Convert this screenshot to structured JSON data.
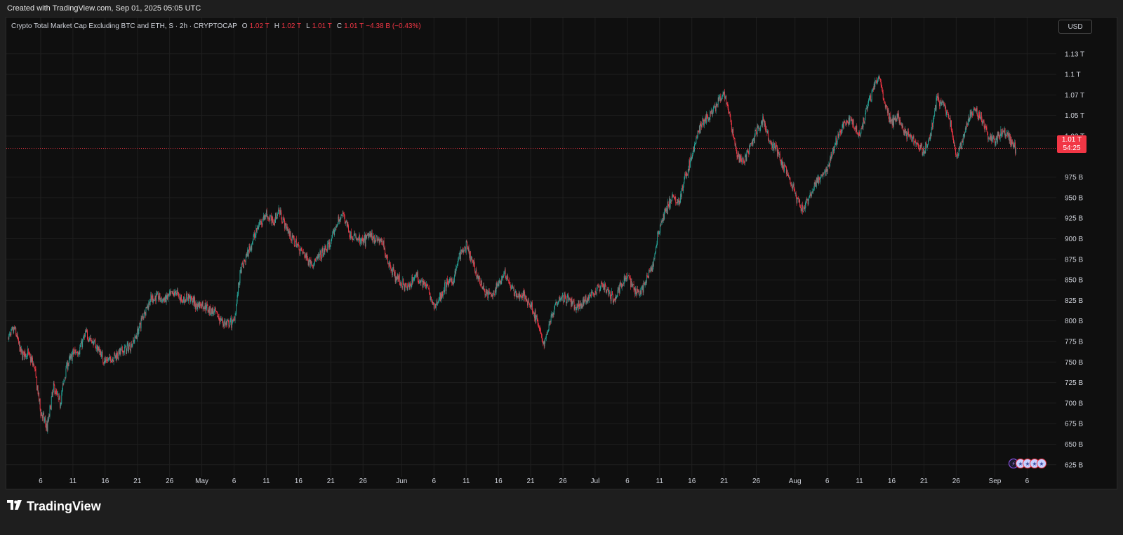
{
  "header": {
    "created_text": "Created with TradingView.com, Sep 01, 2025 05:05 UTC"
  },
  "legend": {
    "symbol": "Crypto Total Market Cap Excluding BTC and ETH, S · 2h · CRYPTOCAP",
    "o_label": "O",
    "o_value": "1.02 T",
    "h_label": "H",
    "h_value": "1.02 T",
    "l_label": "L",
    "l_value": "1.01 T",
    "c_label": "C",
    "c_value": "1.01 T",
    "change": "−4.38 B (−0.43%)"
  },
  "currency": "USD",
  "last_price": {
    "value_label": "1.01 T",
    "countdown": "54:25",
    "value": 1010
  },
  "branding": {
    "name": "TradingView"
  },
  "colors": {
    "up": "#26a69a",
    "down": "#f23645",
    "background": "#0f0f0f",
    "grid": "#1f1f1f",
    "text": "#d1d4dc",
    "last_price_line": "#f23645"
  },
  "events": {
    "icons": [
      "lightning-icon",
      "us-flag-icon",
      "us-flag-icon",
      "us-flag-icon",
      "us-flag-icon"
    ]
  },
  "chart_data": {
    "type": "candlestick",
    "interval": "2h",
    "y_unit": "USD (billions)",
    "ylim": [
      612,
      1147
    ],
    "y_ticks": [
      {
        "v": 625,
        "label": "625 B"
      },
      {
        "v": 650,
        "label": "650 B"
      },
      {
        "v": 675,
        "label": "675 B"
      },
      {
        "v": 700,
        "label": "700 B"
      },
      {
        "v": 725,
        "label": "725 B"
      },
      {
        "v": 750,
        "label": "750 B"
      },
      {
        "v": 775,
        "label": "775 B"
      },
      {
        "v": 800,
        "label": "800 B"
      },
      {
        "v": 825,
        "label": "825 B"
      },
      {
        "v": 850,
        "label": "850 B"
      },
      {
        "v": 875,
        "label": "875 B"
      },
      {
        "v": 900,
        "label": "900 B"
      },
      {
        "v": 925,
        "label": "925 B"
      },
      {
        "v": 950,
        "label": "950 B"
      },
      {
        "v": 975,
        "label": "975 B"
      },
      {
        "v": 1025,
        "label": "1.02 T"
      },
      {
        "v": 1050,
        "label": "1.05 T"
      },
      {
        "v": 1075,
        "label": "1.07 T"
      },
      {
        "v": 1100,
        "label": "1.1 T"
      },
      {
        "v": 1125,
        "label": "1.13 T"
      }
    ],
    "x_range_days": [
      0,
      156
    ],
    "x_ticks": [
      {
        "d": 5,
        "label": "6"
      },
      {
        "d": 10,
        "label": "11"
      },
      {
        "d": 15,
        "label": "16"
      },
      {
        "d": 20,
        "label": "21"
      },
      {
        "d": 25,
        "label": "26"
      },
      {
        "d": 30,
        "label": "May"
      },
      {
        "d": 35,
        "label": "6"
      },
      {
        "d": 40,
        "label": "11"
      },
      {
        "d": 45,
        "label": "16"
      },
      {
        "d": 50,
        "label": "21"
      },
      {
        "d": 55,
        "label": "26"
      },
      {
        "d": 61,
        "label": "Jun"
      },
      {
        "d": 66,
        "label": "6"
      },
      {
        "d": 71,
        "label": "11"
      },
      {
        "d": 76,
        "label": "16"
      },
      {
        "d": 81,
        "label": "21"
      },
      {
        "d": 86,
        "label": "26"
      },
      {
        "d": 91,
        "label": "Jul"
      },
      {
        "d": 96,
        "label": "6"
      },
      {
        "d": 101,
        "label": "11"
      },
      {
        "d": 106,
        "label": "16"
      },
      {
        "d": 111,
        "label": "21"
      },
      {
        "d": 116,
        "label": "26"
      },
      {
        "d": 122,
        "label": "Aug"
      },
      {
        "d": 127,
        "label": "6"
      },
      {
        "d": 132,
        "label": "11"
      },
      {
        "d": 137,
        "label": "16"
      },
      {
        "d": 142,
        "label": "21"
      },
      {
        "d": 147,
        "label": "26"
      },
      {
        "d": 153,
        "label": "Sep"
      },
      {
        "d": 158,
        "label": "6"
      }
    ],
    "price_path": [
      [
        0,
        780
      ],
      [
        1,
        790
      ],
      [
        2,
        760
      ],
      [
        3,
        760
      ],
      [
        4,
        745
      ],
      [
        5,
        690
      ],
      [
        6,
        670
      ],
      [
        7,
        720
      ],
      [
        8,
        700
      ],
      [
        9,
        745
      ],
      [
        10,
        760
      ],
      [
        11,
        765
      ],
      [
        12,
        785
      ],
      [
        13,
        775
      ],
      [
        14,
        765
      ],
      [
        15,
        750
      ],
      [
        16,
        755
      ],
      [
        17,
        760
      ],
      [
        18,
        765
      ],
      [
        19,
        770
      ],
      [
        20,
        785
      ],
      [
        21,
        810
      ],
      [
        22,
        825
      ],
      [
        23,
        830
      ],
      [
        24,
        825
      ],
      [
        25,
        830
      ],
      [
        26,
        835
      ],
      [
        27,
        825
      ],
      [
        28,
        830
      ],
      [
        29,
        820
      ],
      [
        30,
        820
      ],
      [
        31,
        815
      ],
      [
        32,
        810
      ],
      [
        33,
        800
      ],
      [
        34,
        795
      ],
      [
        35,
        800
      ],
      [
        36,
        860
      ],
      [
        37,
        880
      ],
      [
        38,
        900
      ],
      [
        39,
        920
      ],
      [
        40,
        930
      ],
      [
        41,
        920
      ],
      [
        42,
        935
      ],
      [
        43,
        915
      ],
      [
        44,
        900
      ],
      [
        45,
        890
      ],
      [
        46,
        880
      ],
      [
        47,
        870
      ],
      [
        48,
        875
      ],
      [
        49,
        885
      ],
      [
        50,
        895
      ],
      [
        51,
        920
      ],
      [
        52,
        930
      ],
      [
        53,
        905
      ],
      [
        54,
        900
      ],
      [
        55,
        895
      ],
      [
        56,
        905
      ],
      [
        57,
        900
      ],
      [
        58,
        895
      ],
      [
        59,
        870
      ],
      [
        60,
        855
      ],
      [
        61,
        845
      ],
      [
        62,
        840
      ],
      [
        63,
        855
      ],
      [
        64,
        850
      ],
      [
        65,
        840
      ],
      [
        66,
        815
      ],
      [
        67,
        830
      ],
      [
        68,
        845
      ],
      [
        69,
        850
      ],
      [
        70,
        880
      ],
      [
        71,
        890
      ],
      [
        72,
        870
      ],
      [
        73,
        850
      ],
      [
        74,
        835
      ],
      [
        75,
        830
      ],
      [
        76,
        845
      ],
      [
        77,
        860
      ],
      [
        78,
        840
      ],
      [
        79,
        830
      ],
      [
        80,
        830
      ],
      [
        81,
        820
      ],
      [
        82,
        800
      ],
      [
        83,
        770
      ],
      [
        84,
        800
      ],
      [
        85,
        825
      ],
      [
        86,
        830
      ],
      [
        87,
        825
      ],
      [
        88,
        815
      ],
      [
        89,
        820
      ],
      [
        90,
        830
      ],
      [
        91,
        835
      ],
      [
        92,
        845
      ],
      [
        93,
        835
      ],
      [
        94,
        825
      ],
      [
        95,
        845
      ],
      [
        96,
        855
      ],
      [
        97,
        840
      ],
      [
        98,
        835
      ],
      [
        99,
        850
      ],
      [
        100,
        870
      ],
      [
        101,
        915
      ],
      [
        102,
        935
      ],
      [
        103,
        950
      ],
      [
        104,
        945
      ],
      [
        105,
        975
      ],
      [
        106,
        1000
      ],
      [
        107,
        1030
      ],
      [
        108,
        1045
      ],
      [
        109,
        1050
      ],
      [
        110,
        1065
      ],
      [
        111,
        1075
      ],
      [
        112,
        1045
      ],
      [
        113,
        1000
      ],
      [
        114,
        995
      ],
      [
        115,
        1010
      ],
      [
        116,
        1030
      ],
      [
        117,
        1045
      ],
      [
        118,
        1020
      ],
      [
        119,
        1010
      ],
      [
        120,
        990
      ],
      [
        121,
        975
      ],
      [
        122,
        955
      ],
      [
        123,
        935
      ],
      [
        124,
        945
      ],
      [
        125,
        965
      ],
      [
        126,
        975
      ],
      [
        127,
        985
      ],
      [
        128,
        1010
      ],
      [
        129,
        1030
      ],
      [
        130,
        1045
      ],
      [
        131,
        1040
      ],
      [
        132,
        1025
      ],
      [
        133,
        1055
      ],
      [
        134,
        1080
      ],
      [
        135,
        1100
      ],
      [
        136,
        1060
      ],
      [
        137,
        1040
      ],
      [
        138,
        1050
      ],
      [
        139,
        1030
      ],
      [
        140,
        1025
      ],
      [
        141,
        1015
      ],
      [
        142,
        1005
      ],
      [
        143,
        1025
      ],
      [
        144,
        1070
      ],
      [
        145,
        1065
      ],
      [
        146,
        1045
      ],
      [
        147,
        1000
      ],
      [
        148,
        1020
      ],
      [
        149,
        1050
      ],
      [
        150,
        1055
      ],
      [
        151,
        1045
      ],
      [
        152,
        1025
      ],
      [
        153,
        1020
      ],
      [
        154,
        1030
      ],
      [
        155,
        1028
      ],
      [
        156,
        1010
      ]
    ],
    "last_value": 1010
  }
}
